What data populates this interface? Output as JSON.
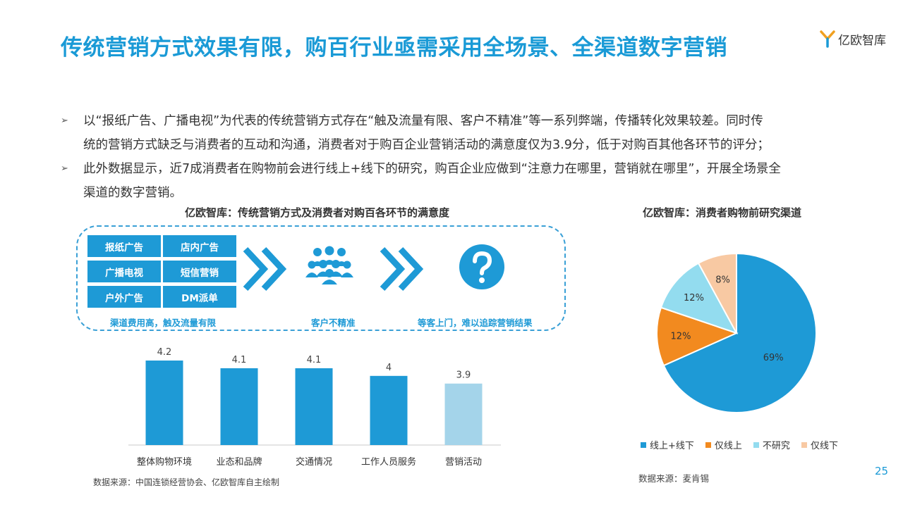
{
  "header": {
    "title": "传统营销方式效果有限，购百行业亟需采用全场景、全渠道数字营销",
    "logo_text": "亿欧智库"
  },
  "bullets": [
    {
      "marker": "➢",
      "line1": "以“报纸广告、广播电视”为代表的传统营销方式存在“触及流量有限、客户不精准”等一系列弊端，传播转化效果较差。同时传",
      "line2": "统的营销方式缺乏与消费者的互动和沟通，消费者对于购百企业营销活动的满意度仅为3.9分，低于对购百其他各环节的评分；"
    },
    {
      "marker": "➢",
      "line1": "此外数据显示，近7成消费者在购物前会进行线上+线下的研究，购百企业应做到“注意力在哪里，营销就在哪里”，开展全场景全",
      "line2": "渠道的数字营销。"
    }
  ],
  "left_section": {
    "title": "亿欧智库：传统营销方式及消费者对购百各环节的满意度",
    "channels": [
      "报纸广告",
      "店内广告",
      "广播电视",
      "短信营销",
      "户外广告",
      "DM派单"
    ],
    "captions": [
      "渠道费用高，触及流量有限",
      "客户不精准",
      "等客上门，难以追踪营销结果"
    ],
    "icons": [
      "chevron-right-double-icon",
      "crowd-icon",
      "chevron-right-double-icon",
      "question-icon"
    ],
    "source": "数据来源：中国连锁经营协会、亿欧智库自主绘制"
  },
  "right_section": {
    "title": "亿欧智库：消费者购物前研究渠道",
    "source": "数据来源：麦肯锡"
  },
  "page_number": "25",
  "colors": {
    "accent": "#1a9ad6",
    "bar": "#1e9ad6",
    "bar_highlight": "#a4d4ea",
    "pie": [
      "#1e9ad6",
      "#f28a1f",
      "#93dcef",
      "#f8c9a3"
    ]
  },
  "chart_data": [
    {
      "type": "bar",
      "title": "",
      "categories": [
        "整体购物环境",
        "业态和品牌",
        "交通情况",
        "工作人员服务",
        "营销活动"
      ],
      "values": [
        4.2,
        4.1,
        4.1,
        4,
        3.9
      ],
      "value_labels": [
        "4.2",
        "4.1",
        "4.1",
        "4",
        "3.9"
      ],
      "ylim": [
        3.1,
        4.2
      ],
      "grid": false,
      "highlight_index": 4
    },
    {
      "type": "pie",
      "title": "",
      "labels": [
        "线上+线下",
        "仅线上",
        "不研究",
        "仅线下"
      ],
      "values": [
        69,
        12,
        12,
        8
      ],
      "value_labels": [
        "69%",
        "12%",
        "12%",
        "8%"
      ],
      "legend": "bottom"
    }
  ]
}
